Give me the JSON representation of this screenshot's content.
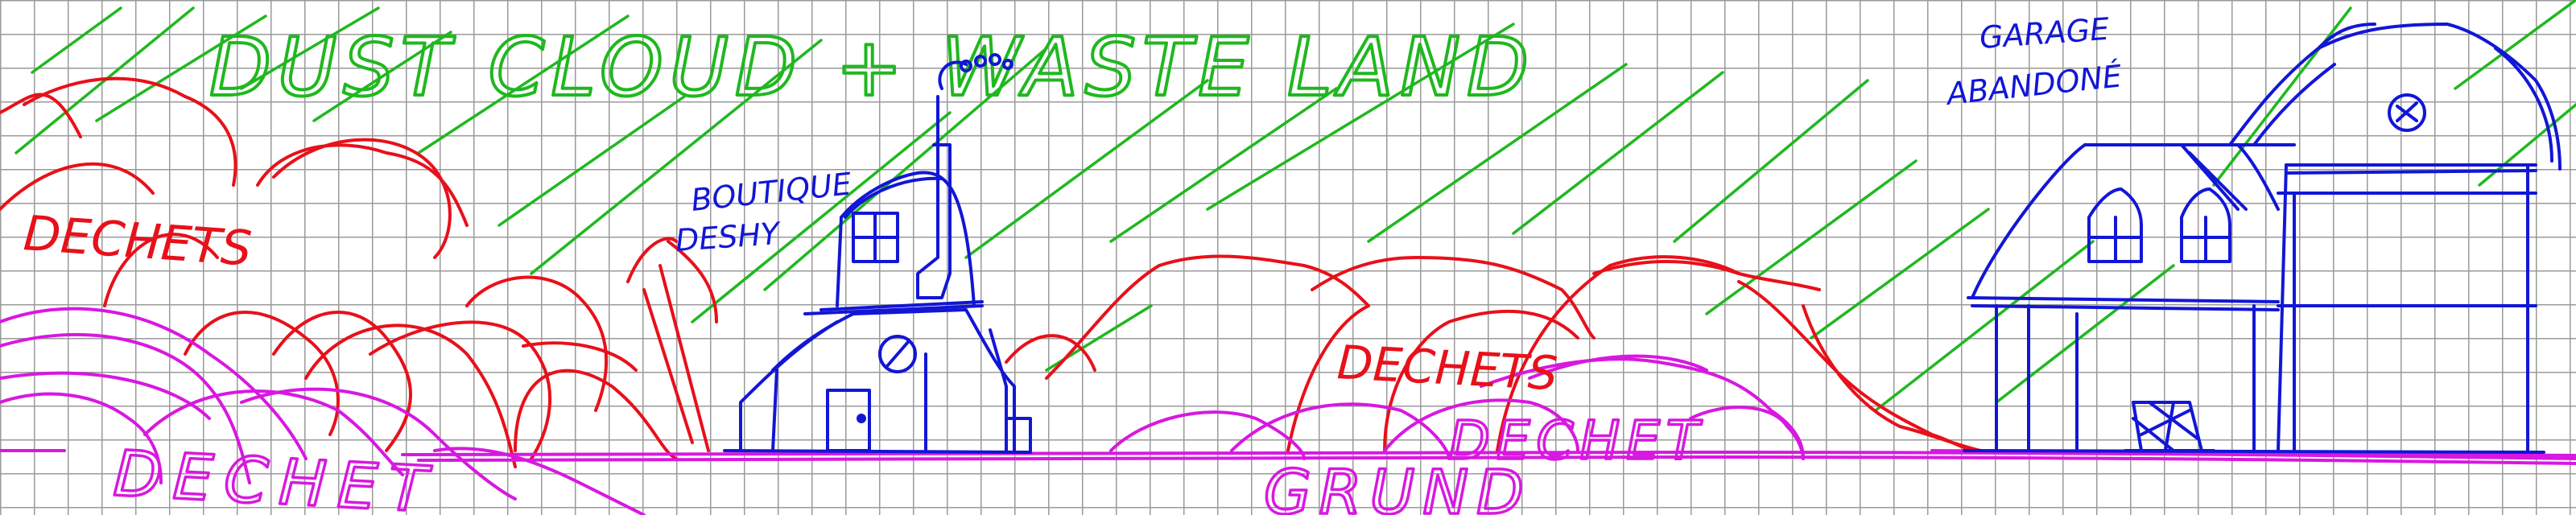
{
  "labels": {
    "title": "DUST CLOUD + WASTE LAND",
    "shop_line1": "BOUTIQUE",
    "shop_line2": "DESHY",
    "garage_line1": "GARAGE",
    "garage_line2": "ABANDONÉ",
    "dechets_left": "DECHETS",
    "dechets_middle": "DECHETS",
    "dechet_bottom_left": "DECHET",
    "dechet_bottom_right": "DECHET",
    "ground": "GRUND"
  },
  "colors": {
    "green": "#1fb81f",
    "red": "#e8101a",
    "magenta": "#d818e0",
    "blue": "#1216d6",
    "grid": "#9a9a9a"
  }
}
